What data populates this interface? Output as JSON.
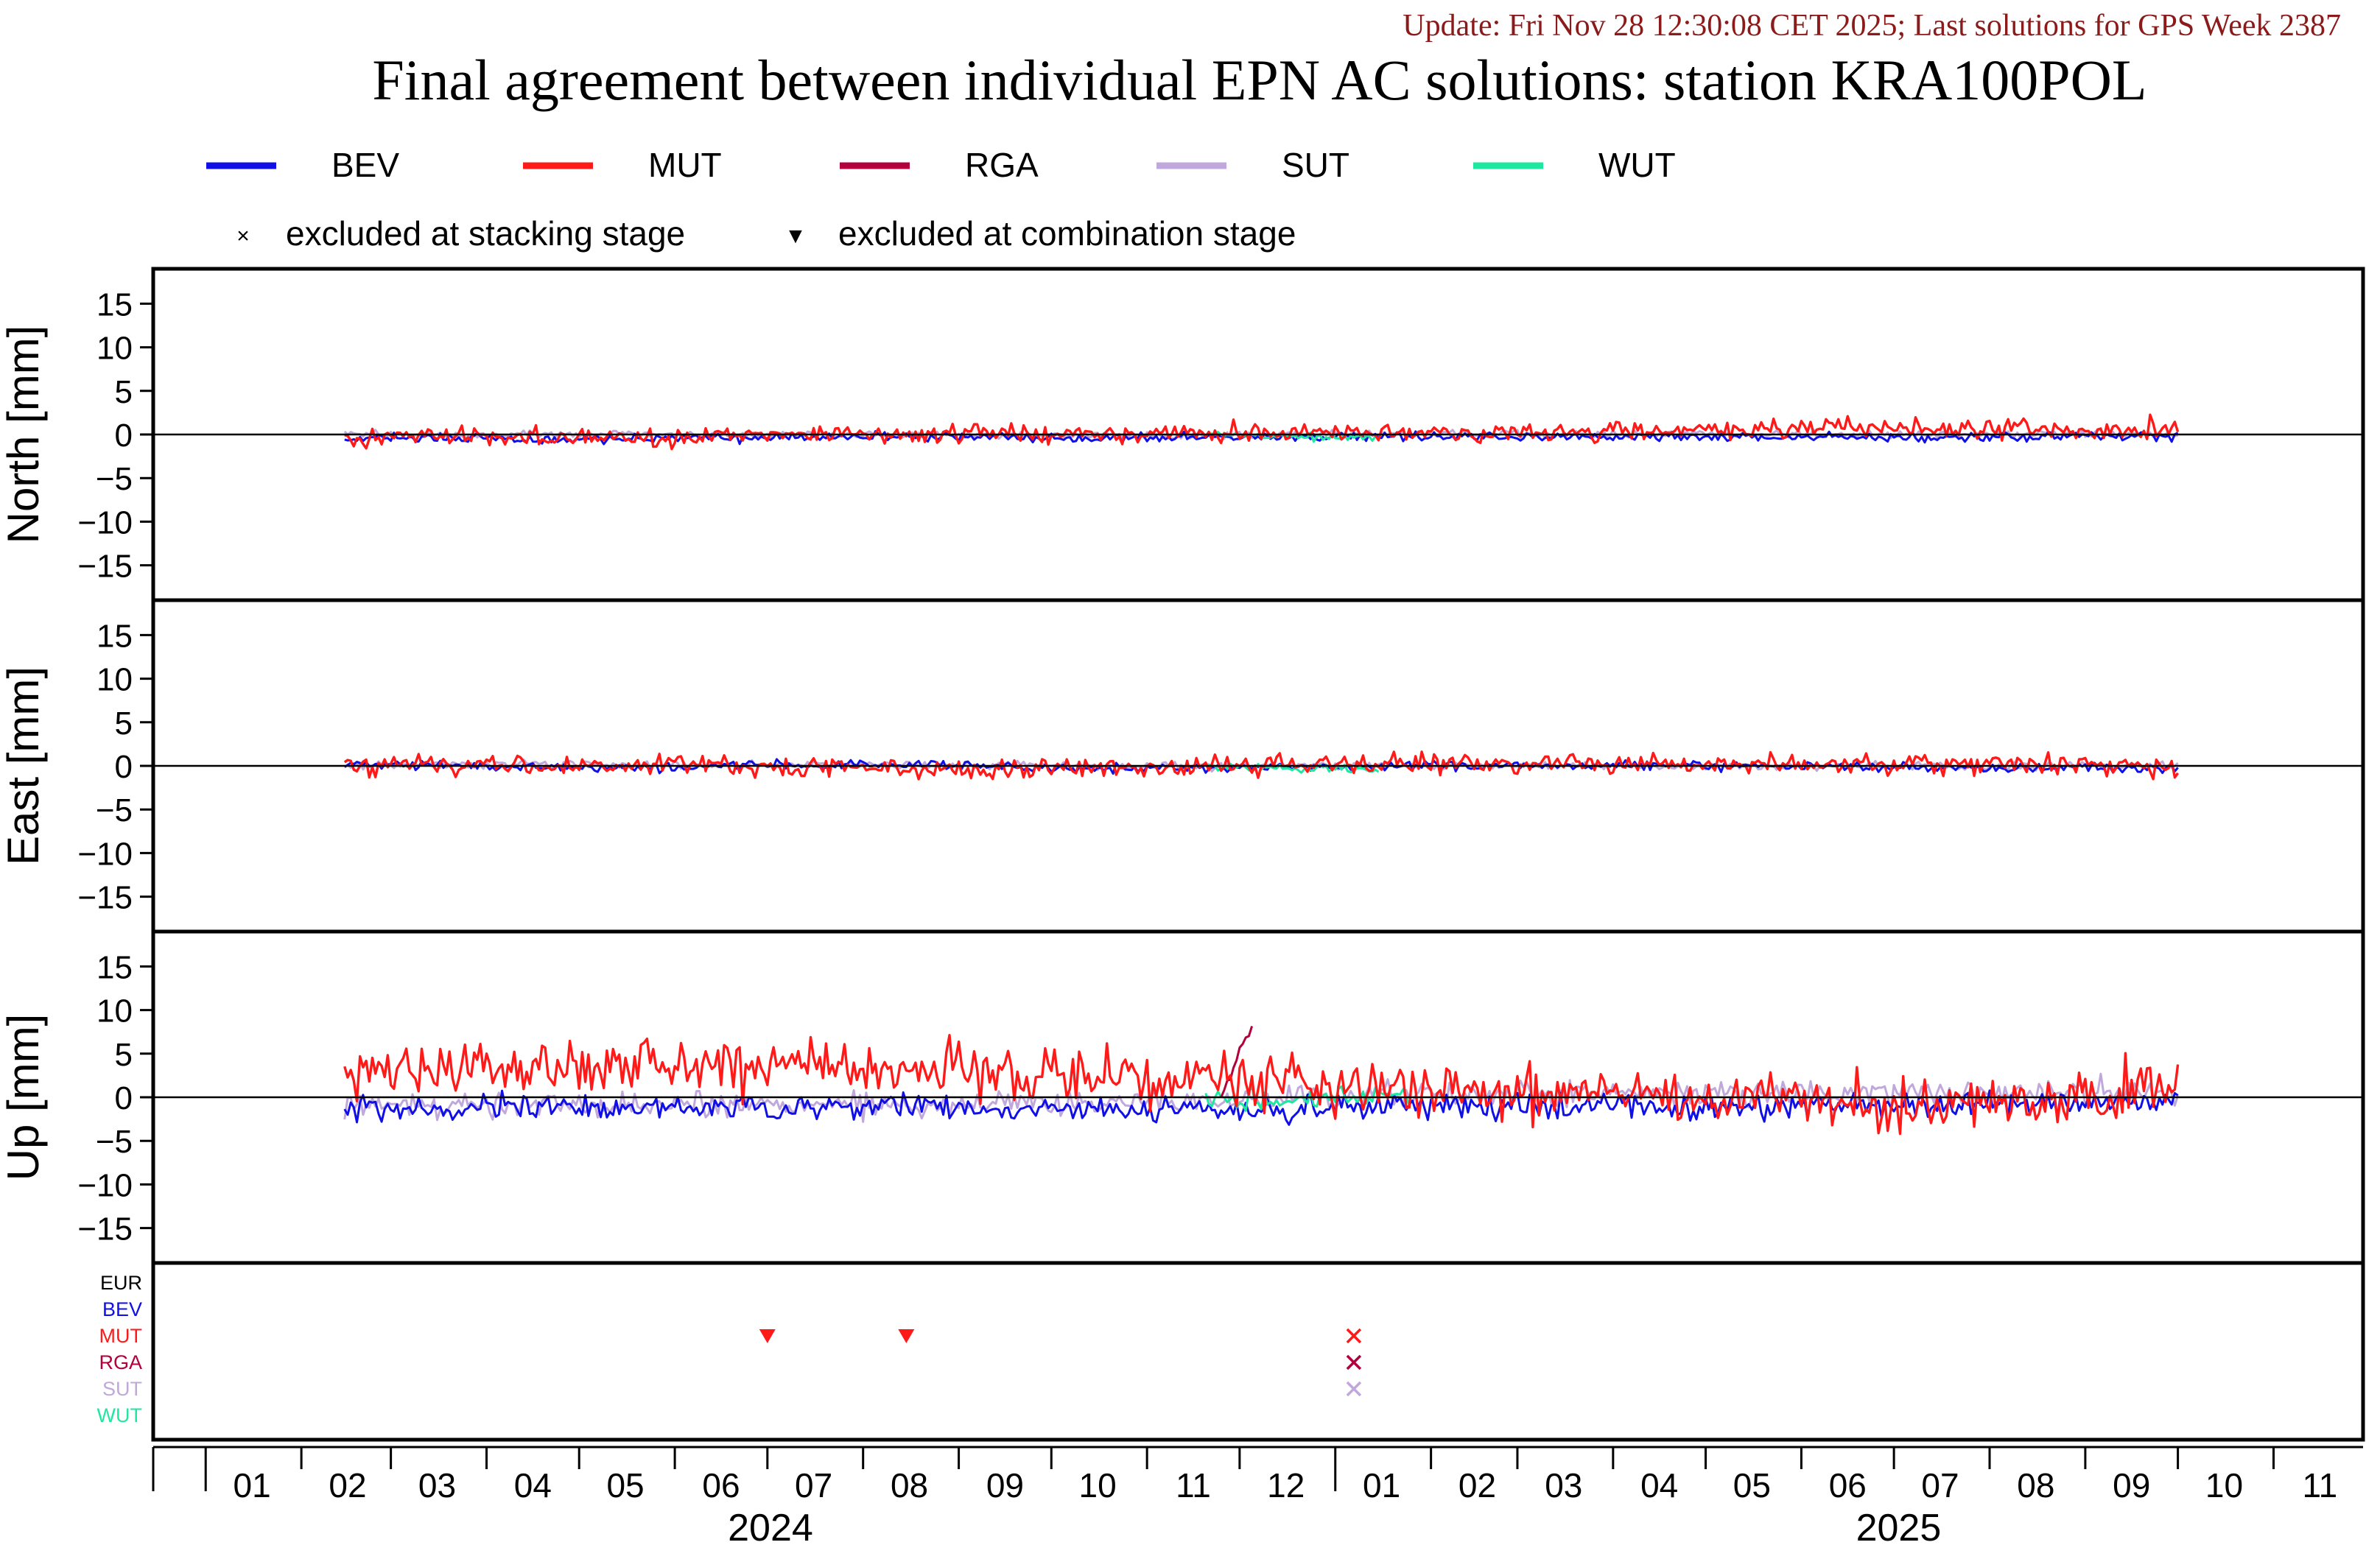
{
  "header": {
    "update_text": "Update: Fri Nov 28 12:30:08 CET 2025; Last solutions for GPS Week 2387",
    "title": "Final agreement between individual EPN AC solutions: station KRA100POL"
  },
  "colors": {
    "BEV": "#1010e6",
    "MUT": "#ff1a1a",
    "RGA": "#b3003c",
    "SUT": "#c0a8dc",
    "WUT": "#1ee8a0",
    "EUR": "#000000",
    "update_text": "#8b1a1a"
  },
  "legend": {
    "series": [
      "BEV",
      "MUT",
      "RGA",
      "SUT",
      "WUT"
    ],
    "markers": [
      {
        "symbol": "×",
        "label": "excluded at stacking stage"
      },
      {
        "symbol": "▼",
        "label": "excluded at combination stage"
      }
    ]
  },
  "chart_data": {
    "type": "line",
    "x_axis": {
      "unit": "month",
      "range": [
        "2023-12-15",
        "2025-11-30"
      ],
      "month_ticks": [
        "01",
        "02",
        "03",
        "04",
        "05",
        "06",
        "07",
        "08",
        "09",
        "10",
        "11",
        "12",
        "01",
        "02",
        "03",
        "04",
        "05",
        "06",
        "07",
        "08",
        "09",
        "10",
        "11"
      ],
      "years": [
        "2024",
        "2025"
      ]
    },
    "panels": [
      {
        "ylabel": "North [mm]",
        "ylim": [
          -19,
          19
        ],
        "yticks": [
          15,
          10,
          5,
          0,
          -5,
          -10,
          -15
        ],
        "series": [
          {
            "name": "BEV",
            "x": [
              "2024-02-15",
              "2024-05-01",
              "2024-08-01",
              "2024-11-01",
              "2025-02-01",
              "2025-05-01",
              "2025-08-01",
              "2025-10-01"
            ],
            "values": [
              -0.4,
              -0.5,
              -0.3,
              -0.4,
              -0.2,
              -0.3,
              -0.3,
              -0.2
            ],
            "amplitude": 0.5
          },
          {
            "name": "MUT",
            "x": [
              "2024-02-15",
              "2024-05-01",
              "2024-08-01",
              "2024-11-01",
              "2025-02-01",
              "2025-05-01",
              "2025-08-01",
              "2025-10-01"
            ],
            "values": [
              -0.2,
              -0.4,
              0.1,
              0.2,
              0.1,
              0.5,
              0.8,
              0.6
            ],
            "amplitude": 1.0
          },
          {
            "name": "SUT",
            "x": [
              "2024-02-15",
              "2024-05-01",
              "2024-08-01",
              "2024-11-01",
              "2025-02-01",
              "2025-05-01",
              "2025-08-01",
              "2025-10-01"
            ],
            "values": [
              0.0,
              0.0,
              0.0,
              -0.1,
              0.1,
              0.0,
              0.0,
              0.0
            ],
            "amplitude": 0.4
          },
          {
            "name": "WUT",
            "x": [
              "2024-11-20",
              "2025-01-15"
            ],
            "values": [
              0.0,
              -0.5
            ],
            "amplitude": 0.4
          }
        ]
      },
      {
        "ylabel": "East [mm]",
        "ylim": [
          -19,
          19
        ],
        "yticks": [
          15,
          10,
          5,
          0,
          -5,
          -10,
          -15
        ],
        "series": [
          {
            "name": "BEV",
            "x": [
              "2024-02-15",
              "2024-05-01",
              "2024-08-01",
              "2024-11-01",
              "2025-02-01",
              "2025-05-01",
              "2025-08-01",
              "2025-10-01"
            ],
            "values": [
              0.2,
              -0.3,
              0.2,
              -0.3,
              0.0,
              0.1,
              -0.3,
              -0.2
            ],
            "amplitude": 0.5
          },
          {
            "name": "MUT",
            "x": [
              "2024-02-15",
              "2024-05-01",
              "2024-08-01",
              "2024-11-01",
              "2025-02-01",
              "2025-05-01",
              "2025-08-01",
              "2025-10-01"
            ],
            "values": [
              0.3,
              0.0,
              -0.2,
              -0.2,
              0.4,
              0.2,
              0.3,
              0.1
            ],
            "amplitude": 1.1
          },
          {
            "name": "SUT",
            "x": [
              "2024-02-15",
              "2024-05-01",
              "2024-08-01",
              "2024-11-01",
              "2025-02-01",
              "2025-05-01",
              "2025-08-01",
              "2025-10-01"
            ],
            "values": [
              0.1,
              0.2,
              0.1,
              0.0,
              0.0,
              0.0,
              0.0,
              0.0
            ],
            "amplitude": 0.4
          },
          {
            "name": "WUT",
            "x": [
              "2024-11-20",
              "2025-01-15"
            ],
            "values": [
              -0.2,
              -0.4
            ],
            "amplitude": 0.4
          }
        ]
      },
      {
        "ylabel": "Up [mm]",
        "ylim": [
          -19,
          19
        ],
        "yticks": [
          15,
          10,
          5,
          0,
          -5,
          -10,
          -15
        ],
        "series": [
          {
            "name": "BEV",
            "x": [
              "2024-02-15",
              "2024-05-01",
              "2024-08-01",
              "2024-11-01",
              "2025-02-01",
              "2025-05-01",
              "2025-08-01",
              "2025-10-01"
            ],
            "values": [
              -1.3,
              -1.2,
              -1.0,
              -1.6,
              -1.0,
              -1.3,
              -0.7,
              -0.5
            ],
            "amplitude": 1.4
          },
          {
            "name": "MUT",
            "x": [
              "2024-02-15",
              "2024-05-01",
              "2024-08-01",
              "2024-11-01",
              "2025-02-01",
              "2025-05-01",
              "2025-08-01",
              "2025-10-01"
            ],
            "values": [
              3.0,
              3.5,
              3.5,
              2.5,
              1.2,
              0.0,
              -1.0,
              1.0
            ],
            "amplitude": 3.0
          },
          {
            "name": "RGA",
            "x": [
              "2024-11-25",
              "2024-12-05"
            ],
            "values": [
              0.0,
              8.0
            ],
            "amplitude": 0.8
          },
          {
            "name": "SUT",
            "x": [
              "2024-02-15",
              "2024-05-01",
              "2024-08-01",
              "2024-11-01",
              "2025-02-01",
              "2025-05-01",
              "2025-08-01",
              "2025-10-01"
            ],
            "values": [
              -0.8,
              -1.0,
              -0.8,
              -0.6,
              0.4,
              0.5,
              0.5,
              0.5
            ],
            "amplitude": 1.3
          },
          {
            "name": "WUT",
            "x": [
              "2024-11-20",
              "2025-01-25"
            ],
            "values": [
              -0.5,
              0.5
            ],
            "amplitude": 1.2
          }
        ]
      }
    ],
    "exclusion_panel": {
      "row_labels": [
        "EUR",
        "BEV",
        "MUT",
        "RGA",
        "SUT",
        "WUT"
      ],
      "events": [
        {
          "row": "MUT",
          "date": "2024-07-01",
          "type": "combination"
        },
        {
          "row": "MUT",
          "date": "2024-08-15",
          "type": "combination"
        },
        {
          "row": "MUT",
          "date": "2025-01-07",
          "type": "stacking"
        },
        {
          "row": "RGA",
          "date": "2025-01-07",
          "type": "stacking"
        },
        {
          "row": "SUT",
          "date": "2025-01-07",
          "type": "stacking"
        }
      ]
    }
  }
}
